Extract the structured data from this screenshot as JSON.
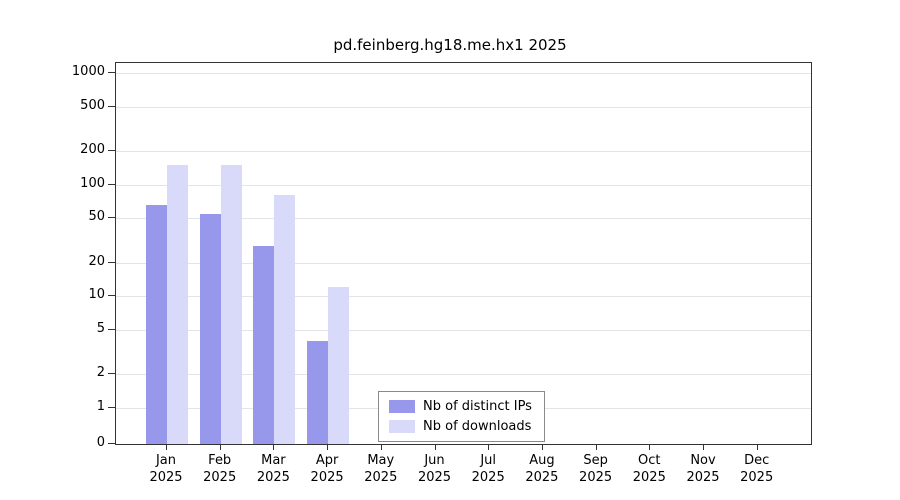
{
  "title": "pd.feinberg.hg18.me.hx1 2025",
  "chart_data": {
    "type": "bar",
    "title": "pd.feinberg.hg18.me.hx1 2025",
    "categories": [
      "Jan",
      "Feb",
      "Mar",
      "Apr",
      "May",
      "Jun",
      "Jul",
      "Aug",
      "Sep",
      "Oct",
      "Nov",
      "Dec"
    ],
    "year_label": "2025",
    "series": [
      {
        "name": "Nb of distinct IPs",
        "color": "#9798ec",
        "values": [
          65,
          55,
          28,
          4,
          0,
          0,
          0,
          0,
          0,
          0,
          0,
          0
        ]
      },
      {
        "name": "Nb of downloads",
        "color": "#d9daf9",
        "values": [
          150,
          150,
          80,
          12,
          0,
          0,
          0,
          0,
          0,
          0,
          0,
          0
        ]
      }
    ],
    "y_ticks": [
      0,
      1,
      2,
      5,
      10,
      20,
      50,
      100,
      200,
      500,
      1000
    ],
    "y_scale": "log",
    "ylim": [
      0,
      1000
    ],
    "grid": true,
    "legend_position": "bottom-center-inside",
    "xlabel": "",
    "ylabel": ""
  }
}
